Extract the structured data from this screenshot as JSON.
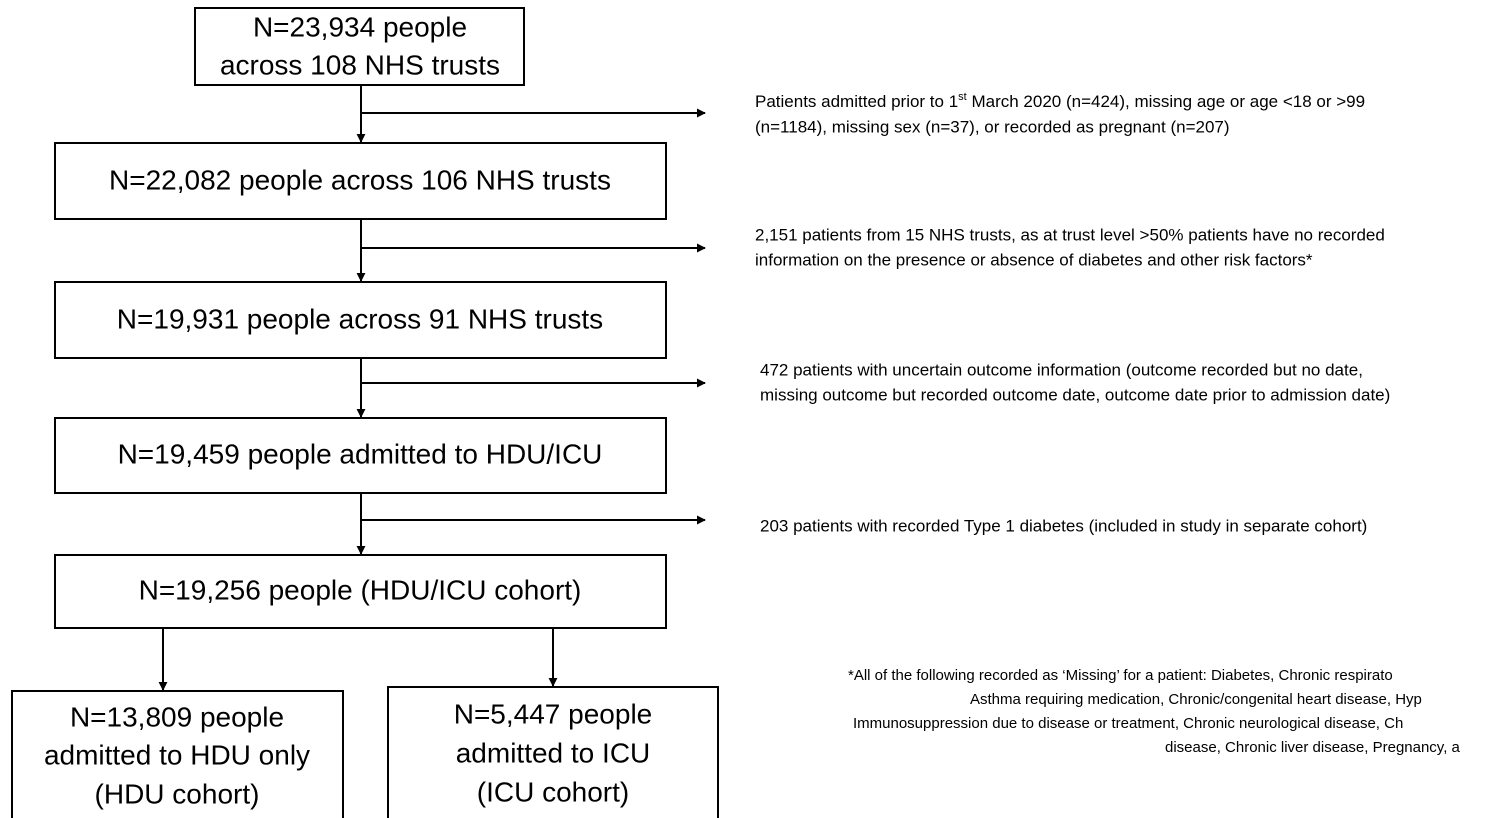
{
  "nodes": [
    {
      "lines": [
        "N=23,934 people",
        "across 108 NHS trusts"
      ]
    },
    {
      "lines": [
        "N=22,082 people across 106 NHS trusts"
      ]
    },
    {
      "lines": [
        "N=19,931 people across 91 NHS trusts"
      ]
    },
    {
      "lines": [
        "N=19,459 people admitted to HDU/ICU"
      ]
    },
    {
      "lines": [
        "N=19,256 people (HDU/ICU cohort)"
      ]
    },
    {
      "lines": [
        "N=13,809 people",
        "admitted to HDU only",
        "(HDU cohort)"
      ]
    },
    {
      "lines": [
        "N=5,447 people",
        "admitted to ICU",
        "(ICU cohort)"
      ]
    }
  ],
  "exclusions": [
    {
      "line1_start": "Patients admitted prior to 1",
      "line1_sup": "st",
      "line1_end": " March 2020 (n=424), missing age or age <18 or >99",
      "line2": "(n=1184), missing sex (n=37), or recorded as pregnant (n=207)"
    },
    {
      "lines": [
        "2,151 patients from 15 NHS trusts, as at trust level >50% patients have no recorded",
        "information on the presence or absence of diabetes and other risk factors*"
      ]
    },
    {
      "lines": [
        "472 patients with uncertain outcome information (outcome recorded but no date,",
        "missing outcome but recorded outcome date, outcome date prior to admission date)"
      ]
    },
    {
      "lines": [
        "203 patients with recorded Type 1 diabetes (included in study in separate cohort)"
      ]
    }
  ],
  "footnote": {
    "lines": [
      "*All of the following recorded as ‘Missing’ for a patient: Diabetes, Chronic respirato",
      "Asthma requiring medication, Chronic/congenital heart disease, Hyp",
      "Immunosuppression due to disease or treatment, Chronic neurological disease, Ch",
      "disease, Chronic liver disease, Pregnancy, a"
    ]
  }
}
